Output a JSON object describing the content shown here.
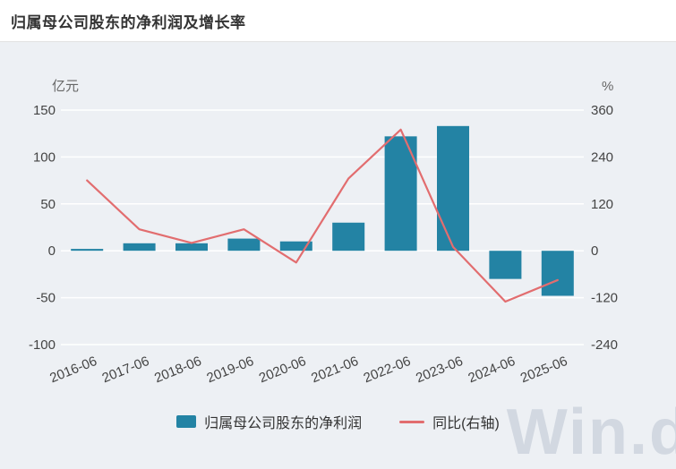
{
  "header": {
    "title": "归属母公司股东的净利润及增长率"
  },
  "chart_data": {
    "type": "bar+line",
    "categories": [
      "2016-06",
      "2017-06",
      "2018-06",
      "2019-06",
      "2020-06",
      "2021-06",
      "2022-06",
      "2023-06",
      "2024-06",
      "2025-06"
    ],
    "series": [
      {
        "name": "归属母公司股东的净利润",
        "type": "bar",
        "axis": "left",
        "values": [
          2,
          8,
          8,
          13,
          10,
          30,
          122,
          133,
          -30,
          -48
        ]
      },
      {
        "name": "同比(右轴)",
        "type": "line",
        "axis": "right",
        "values": [
          180,
          55,
          20,
          55,
          -30,
          185,
          310,
          10,
          -130,
          -75
        ]
      }
    ],
    "left_axis": {
      "unit": "亿元",
      "min": -100,
      "max": 150,
      "ticks": [
        150,
        100,
        50,
        0,
        -50,
        -100
      ]
    },
    "right_axis": {
      "unit": "%",
      "min": -240,
      "max": 360,
      "ticks": [
        360,
        240,
        120,
        0,
        -120,
        -240
      ]
    },
    "grid": true,
    "legend_position": "bottom",
    "title": "归属母公司股东的净利润及增长率"
  },
  "legend": {
    "bar_label": "归属母公司股东的净利润",
    "line_label": "同比(右轴)"
  },
  "watermark": "Win.d",
  "colors": {
    "bar": "#2383a4",
    "line": "#e26d6f",
    "chart_bg": "#edf0f4",
    "grid": "#ffffff",
    "axis_text": "#444444",
    "unit_text": "#666666",
    "title_text": "#333333"
  }
}
